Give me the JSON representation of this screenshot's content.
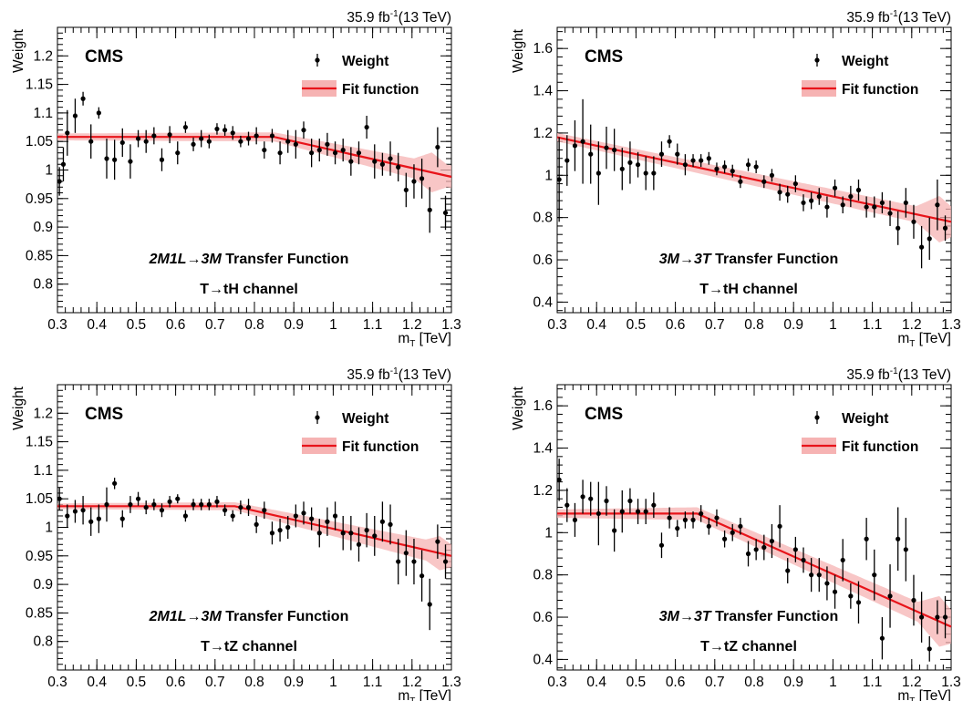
{
  "chart_data": [
    {
      "type": "scatter",
      "experiment": "CMS",
      "lumi_sup": "-1",
      "lumi_pre": "35.9 fb",
      "lumi_post": "(13 TeV)",
      "xlabel_main": "m",
      "xlabel_sub": "T",
      "xlabel_unit": " [TeV]",
      "ylabel": "Weight",
      "xlim": [
        0.3,
        1.3
      ],
      "ylim": [
        0.75,
        1.25
      ],
      "xticks": [
        "0.3",
        "0.4",
        "0.5",
        "0.6",
        "0.7",
        "0.8",
        "0.9",
        "1",
        "1.1",
        "1.2",
        "1.3"
      ],
      "yticks": [
        "0.8",
        "0.85",
        "0.9",
        "0.95",
        "1",
        "1.05",
        "1.1",
        "1.15",
        "1.2"
      ],
      "legend": [
        "Weight",
        "Fit function"
      ],
      "annotation_line1_italic": "2M1L",
      "annotation_arrow": "→",
      "annotation_line1_italic2": "3M",
      "annotation_line1_rest": " Transfer Function",
      "annotation_line2": "T→tH channel",
      "series": [
        {
          "name": "Weight",
          "x": [
            0.305,
            0.315,
            0.325,
            0.345,
            0.365,
            0.385,
            0.405,
            0.425,
            0.445,
            0.465,
            0.485,
            0.505,
            0.525,
            0.545,
            0.565,
            0.585,
            0.605,
            0.625,
            0.645,
            0.665,
            0.685,
            0.705,
            0.725,
            0.745,
            0.765,
            0.785,
            0.805,
            0.825,
            0.845,
            0.865,
            0.885,
            0.905,
            0.925,
            0.945,
            0.965,
            0.985,
            1.005,
            1.025,
            1.045,
            1.065,
            1.085,
            1.105,
            1.125,
            1.145,
            1.165,
            1.185,
            1.205,
            1.225,
            1.245,
            1.265,
            1.285
          ],
          "y": [
            0.98,
            1.01,
            1.065,
            1.095,
            1.125,
            1.05,
            1.1,
            1.02,
            1.018,
            1.048,
            1.015,
            1.055,
            1.05,
            1.06,
            1.018,
            1.062,
            1.03,
            1.075,
            1.045,
            1.055,
            1.05,
            1.072,
            1.07,
            1.065,
            1.05,
            1.055,
            1.06,
            1.035,
            1.06,
            1.03,
            1.05,
            1.045,
            1.07,
            1.03,
            1.035,
            1.045,
            1.03,
            1.035,
            1.015,
            1.03,
            1.075,
            1.015,
            1.01,
            1.02,
            1.005,
            0.965,
            0.98,
            0.985,
            0.93,
            1.04,
            0.925
          ],
          "yerr": [
            0.025,
            0.03,
            0.04,
            0.03,
            0.012,
            0.03,
            0.01,
            0.035,
            0.035,
            0.025,
            0.03,
            0.015,
            0.02,
            0.015,
            0.02,
            0.015,
            0.02,
            0.01,
            0.012,
            0.015,
            0.012,
            0.01,
            0.01,
            0.012,
            0.01,
            0.012,
            0.015,
            0.015,
            0.012,
            0.02,
            0.02,
            0.025,
            0.015,
            0.025,
            0.02,
            0.02,
            0.02,
            0.02,
            0.025,
            0.02,
            0.02,
            0.03,
            0.02,
            0.03,
            0.025,
            0.03,
            0.03,
            0.035,
            0.04,
            0.035,
            0.03
          ]
        },
        {
          "name": "Fit function",
          "x": [
            0.3,
            0.85,
            1.3
          ],
          "y": [
            1.058,
            1.058,
            0.988
          ],
          "band": [
            0.006,
            0.008,
            0.02
          ],
          "band_max_at": [
            1.25,
            0.035
          ]
        }
      ]
    },
    {
      "type": "scatter",
      "experiment": "CMS",
      "lumi_sup": "-1",
      "lumi_pre": "35.9 fb",
      "lumi_post": "(13 TeV)",
      "xlabel_main": "m",
      "xlabel_sub": "T",
      "xlabel_unit": " [TeV]",
      "ylabel": "Weight",
      "xlim": [
        0.3,
        1.3
      ],
      "ylim": [
        0.35,
        1.7
      ],
      "xticks": [
        "0.3",
        "0.4",
        "0.5",
        "0.6",
        "0.7",
        "0.8",
        "0.9",
        "1",
        "1.1",
        "1.2",
        "1.3"
      ],
      "yticks": [
        "0.4",
        "0.6",
        "0.8",
        "1",
        "1.2",
        "1.4",
        "1.6"
      ],
      "legend": [
        "Weight",
        "Fit function"
      ],
      "annotation_line1_italic": "3M",
      "annotation_arrow": "→",
      "annotation_line1_italic2": "3T",
      "annotation_line1_rest": " Transfer Function",
      "annotation_line2": "T→tH channel",
      "series": [
        {
          "name": "Weight",
          "x": [
            0.305,
            0.325,
            0.345,
            0.365,
            0.385,
            0.405,
            0.425,
            0.445,
            0.465,
            0.485,
            0.505,
            0.525,
            0.545,
            0.565,
            0.585,
            0.605,
            0.625,
            0.645,
            0.665,
            0.685,
            0.705,
            0.725,
            0.745,
            0.765,
            0.785,
            0.805,
            0.825,
            0.845,
            0.865,
            0.885,
            0.905,
            0.925,
            0.945,
            0.965,
            0.985,
            1.005,
            1.025,
            1.045,
            1.065,
            1.085,
            1.105,
            1.125,
            1.145,
            1.165,
            1.185,
            1.205,
            1.225,
            1.245,
            1.265,
            1.285
          ],
          "y": [
            0.98,
            1.07,
            1.14,
            1.16,
            1.1,
            1.01,
            1.13,
            1.12,
            1.03,
            1.06,
            1.05,
            1.01,
            1.01,
            1.1,
            1.16,
            1.1,
            1.05,
            1.07,
            1.07,
            1.08,
            1.03,
            1.04,
            1.02,
            0.97,
            1.05,
            1.04,
            0.97,
            1.0,
            0.92,
            0.91,
            0.96,
            0.87,
            0.88,
            0.9,
            0.85,
            0.94,
            0.86,
            0.9,
            0.93,
            0.85,
            0.85,
            0.87,
            0.82,
            0.75,
            0.87,
            0.78,
            0.66,
            0.7,
            0.86,
            0.75
          ],
          "yerr": [
            0.2,
            0.12,
            0.12,
            0.2,
            0.14,
            0.15,
            0.1,
            0.1,
            0.1,
            0.1,
            0.06,
            0.08,
            0.08,
            0.06,
            0.03,
            0.05,
            0.05,
            0.03,
            0.03,
            0.03,
            0.03,
            0.03,
            0.03,
            0.03,
            0.03,
            0.03,
            0.03,
            0.03,
            0.04,
            0.04,
            0.04,
            0.04,
            0.04,
            0.04,
            0.05,
            0.04,
            0.04,
            0.05,
            0.05,
            0.05,
            0.05,
            0.05,
            0.06,
            0.08,
            0.07,
            0.08,
            0.1,
            0.1,
            0.12,
            0.06
          ]
        },
        {
          "name": "Fit function",
          "x": [
            0.3,
            1.3
          ],
          "y": [
            1.18,
            0.78
          ],
          "band": [
            0.02,
            0.04
          ],
          "band_max_at": [
            1.27,
            0.11
          ]
        }
      ]
    },
    {
      "type": "scatter",
      "experiment": "CMS",
      "lumi_sup": "-1",
      "lumi_pre": "35.9 fb",
      "lumi_post": "(13 TeV)",
      "xlabel_main": "m",
      "xlabel_sub": "T",
      "xlabel_unit": " [TeV]",
      "ylabel": "Weight",
      "xlim": [
        0.3,
        1.3
      ],
      "ylim": [
        0.75,
        1.25
      ],
      "xticks": [
        "0.3",
        "0.4",
        "0.5",
        "0.6",
        "0.7",
        "0.8",
        "0.9",
        "1",
        "1.1",
        "1.2",
        "1.3"
      ],
      "yticks": [
        "0.8",
        "0.85",
        "0.9",
        "0.95",
        "1",
        "1.05",
        "1.1",
        "1.15",
        "1.2"
      ],
      "legend": [
        "Weight",
        "Fit function"
      ],
      "annotation_line1_italic": "2M1L",
      "annotation_arrow": "→",
      "annotation_line1_italic2": "3M",
      "annotation_line1_rest": " Transfer Function",
      "annotation_line2": "T→tZ channel",
      "series": [
        {
          "name": "Weight",
          "x": [
            0.305,
            0.325,
            0.345,
            0.365,
            0.385,
            0.405,
            0.425,
            0.445,
            0.465,
            0.485,
            0.505,
            0.525,
            0.545,
            0.565,
            0.585,
            0.605,
            0.625,
            0.645,
            0.665,
            0.685,
            0.705,
            0.725,
            0.745,
            0.765,
            0.785,
            0.805,
            0.825,
            0.845,
            0.865,
            0.885,
            0.905,
            0.925,
            0.945,
            0.965,
            0.985,
            1.005,
            1.025,
            1.045,
            1.065,
            1.085,
            1.105,
            1.125,
            1.145,
            1.165,
            1.185,
            1.205,
            1.225,
            1.245,
            1.265,
            1.285
          ],
          "y": [
            1.05,
            1.02,
            1.028,
            1.03,
            1.01,
            1.015,
            1.04,
            1.077,
            1.015,
            1.04,
            1.05,
            1.035,
            1.04,
            1.03,
            1.045,
            1.05,
            1.02,
            1.04,
            1.04,
            1.04,
            1.045,
            1.03,
            1.02,
            1.035,
            1.035,
            1.005,
            1.03,
            0.99,
            0.995,
            1.0,
            1.02,
            1.025,
            1.015,
            0.99,
            1.01,
            1.02,
            0.99,
            0.99,
            0.97,
            0.995,
            0.985,
            1.01,
            1.005,
            0.94,
            0.955,
            0.94,
            0.915,
            0.865,
            0.975,
            0.94
          ],
          "yerr": [
            0.02,
            0.02,
            0.02,
            0.025,
            0.025,
            0.025,
            0.03,
            0.01,
            0.015,
            0.015,
            0.012,
            0.012,
            0.01,
            0.012,
            0.01,
            0.008,
            0.01,
            0.01,
            0.01,
            0.01,
            0.01,
            0.01,
            0.01,
            0.012,
            0.015,
            0.015,
            0.015,
            0.02,
            0.02,
            0.02,
            0.02,
            0.02,
            0.02,
            0.025,
            0.025,
            0.025,
            0.03,
            0.03,
            0.03,
            0.03,
            0.035,
            0.035,
            0.035,
            0.04,
            0.04,
            0.04,
            0.045,
            0.045,
            0.03,
            0.03
          ]
        },
        {
          "name": "Fit function",
          "x": [
            0.3,
            0.75,
            1.3
          ],
          "y": [
            1.037,
            1.037,
            0.95
          ],
          "band": [
            0.005,
            0.007,
            0.02
          ],
          "band_max_at": [
            1.27,
            0.03
          ]
        }
      ]
    },
    {
      "type": "scatter",
      "experiment": "CMS",
      "lumi_sup": "-1",
      "lumi_pre": "35.9 fb",
      "lumi_post": "(13 TeV)",
      "xlabel_main": "m",
      "xlabel_sub": "T",
      "xlabel_unit": " [TeV]",
      "ylabel": "Weight",
      "xlim": [
        0.3,
        1.3
      ],
      "ylim": [
        0.35,
        1.7
      ],
      "xticks": [
        "0.3",
        "0.4",
        "0.5",
        "0.6",
        "0.7",
        "0.8",
        "0.9",
        "1",
        "1.1",
        "1.2",
        "1.3"
      ],
      "yticks": [
        "0.4",
        "0.6",
        "0.8",
        "1",
        "1.2",
        "1.4",
        "1.6"
      ],
      "legend": [
        "Weight",
        "Fit function"
      ],
      "annotation_line1_italic": "3M",
      "annotation_arrow": "→",
      "annotation_line1_italic2": "3T",
      "annotation_line1_rest": " Transfer Function",
      "annotation_line2": "T→tZ channel",
      "series": [
        {
          "name": "Weight",
          "x": [
            0.305,
            0.325,
            0.345,
            0.365,
            0.385,
            0.405,
            0.425,
            0.445,
            0.465,
            0.485,
            0.505,
            0.525,
            0.545,
            0.565,
            0.585,
            0.605,
            0.625,
            0.645,
            0.665,
            0.685,
            0.705,
            0.725,
            0.745,
            0.765,
            0.785,
            0.805,
            0.825,
            0.845,
            0.865,
            0.885,
            0.905,
            0.925,
            0.945,
            0.965,
            0.985,
            1.005,
            1.025,
            1.045,
            1.065,
            1.085,
            1.105,
            1.125,
            1.145,
            1.165,
            1.185,
            1.205,
            1.225,
            1.245,
            1.265,
            1.285
          ],
          "y": [
            1.25,
            1.13,
            1.06,
            1.17,
            1.16,
            1.09,
            1.15,
            1.01,
            1.1,
            1.15,
            1.1,
            1.1,
            1.13,
            0.94,
            1.07,
            1.02,
            1.06,
            1.06,
            1.09,
            1.03,
            1.07,
            0.97,
            1.0,
            1.03,
            0.9,
            0.92,
            0.93,
            0.96,
            1.03,
            0.82,
            0.92,
            0.87,
            0.8,
            0.8,
            0.76,
            0.72,
            0.87,
            0.7,
            0.67,
            0.97,
            0.8,
            0.5,
            0.7,
            0.97,
            0.92,
            0.68,
            0.6,
            0.45,
            0.6,
            0.6
          ],
          "yerr": [
            0.1,
            0.08,
            0.08,
            0.08,
            0.08,
            0.15,
            0.07,
            0.1,
            0.1,
            0.06,
            0.06,
            0.06,
            0.06,
            0.06,
            0.05,
            0.04,
            0.04,
            0.04,
            0.04,
            0.04,
            0.04,
            0.04,
            0.04,
            0.04,
            0.06,
            0.05,
            0.06,
            0.08,
            0.1,
            0.06,
            0.06,
            0.06,
            0.08,
            0.08,
            0.08,
            0.08,
            0.1,
            0.06,
            0.1,
            0.1,
            0.12,
            0.1,
            0.15,
            0.15,
            0.15,
            0.12,
            0.12,
            0.06,
            0.08,
            0.1
          ]
        },
        {
          "name": "Fit function",
          "x": [
            0.3,
            0.655,
            1.3
          ],
          "y": [
            1.09,
            1.09,
            0.555
          ],
          "band": [
            0.02,
            0.03,
            0.05
          ],
          "band_max_at": [
            1.27,
            0.12
          ]
        }
      ]
    }
  ]
}
